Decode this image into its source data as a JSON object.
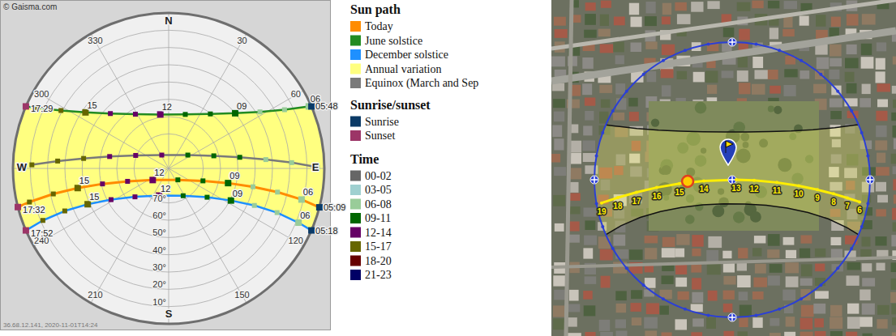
{
  "chart_data": [
    {
      "type": "sun_path",
      "title": "© Gaisma.com",
      "footer": "36.68.12.141, 2020-11-01T14:24",
      "xlim": [
        0,
        360
      ],
      "xticks": [
        {
          "value": 0,
          "label": "N"
        },
        30,
        60,
        {
          "value": 90,
          "label": "E"
        },
        120,
        150,
        {
          "value": 180,
          "label": "S"
        },
        210,
        240,
        {
          "value": 270,
          "label": "W"
        },
        300,
        330
      ],
      "ylim": [
        0,
        90
      ],
      "yticks": [
        {
          "value": 10,
          "label": "10°"
        },
        {
          "value": 20,
          "label": "20°"
        },
        {
          "value": 30,
          "label": "30°"
        },
        {
          "value": 40,
          "label": "40°"
        },
        {
          "value": 50,
          "label": "50°"
        },
        {
          "value": 60,
          "label": "60°"
        },
        {
          "value": 70,
          "label": "70°"
        }
      ],
      "grid": true,
      "marker": "square",
      "legend_title": "Sun path",
      "series": [
        {
          "name": "Today",
          "color": "#ff8c00",
          "type": "line",
          "hours": [
            6,
            7,
            8,
            9,
            10,
            11,
            12,
            13,
            14,
            15,
            16,
            17
          ],
          "x": [
            103.2,
            102.3,
            102.3,
            103.9,
            110.0,
            141.2,
            233.8,
            252.5,
            256.8,
            257.8,
            257.5,
            256.4
          ],
          "values": [
            11.1,
            25.6,
            40.1,
            54.6,
            68.9,
            81.5,
            78.6,
            65.1,
            50.7,
            36.2,
            21.7,
            7.2
          ],
          "hour_labels": [
            "06",
            null,
            null,
            "09",
            null,
            null,
            "12",
            null,
            null,
            "15",
            null,
            null
          ],
          "sunrise": {
            "label": "05:09",
            "x": 104.5,
            "value": 0
          },
          "sunset": {
            "label": "17:32",
            "x": 255.6,
            "value": 0
          }
        },
        {
          "name": "June solstice",
          "color": "#228b22",
          "type": "line",
          "hours": [
            6,
            7,
            8,
            9,
            10,
            11,
            12,
            13,
            14,
            15,
            16,
            17
          ],
          "x": [
            66.1,
            63.1,
            58.2,
            50.3,
            37.4,
            17.1,
            351.2,
            328.5,
            313.3,
            304.0,
            298.3,
            294.7
          ],
          "values": [
            1.4,
            14.9,
            27.9,
            40.0,
            50.3,
            57.3,
            58.4,
            53.2,
            43.7,
            32.0,
            19.3,
            6.0
          ],
          "hour_labels": [
            "06",
            null,
            null,
            "09",
            null,
            null,
            "12",
            null,
            null,
            "15",
            null,
            null
          ],
          "sunrise": {
            "label": "05:48",
            "x": 66.5,
            "value": 0
          },
          "sunset": {
            "label": "17:29",
            "x": 293.5,
            "value": 0
          }
        },
        {
          "name": "December solstice",
          "color": "#1e90ff",
          "type": "line",
          "hours": [
            6,
            7,
            8,
            9,
            10,
            11,
            12,
            13,
            14,
            15,
            16,
            17
          ],
          "x": [
            112.7,
            112.2,
            113.4,
            117.3,
            126.9,
            152.1,
            199.5,
            229.8,
            241.5,
            246.1,
            247.7,
            247.5
          ],
          "values": [
            8.6,
            22.3,
            36.0,
            49.5,
            62.2,
            72.1,
            73.3,
            64.5,
            52.1,
            38.8,
            25.1,
            11.3
          ],
          "hour_labels": [
            "06",
            null,
            null,
            "09",
            null,
            null,
            "12",
            null,
            null,
            "15",
            null,
            null
          ],
          "sunrise": {
            "label": "05:18",
            "x": 113.5,
            "value": 0
          },
          "sunset": {
            "label": "17:52",
            "x": 246.5,
            "value": 0
          }
        },
        {
          "name": "Annual variation",
          "color": "#ffff80",
          "type": "area"
        },
        {
          "name": "Equinox (March and Sep",
          "color": "#7a7a7a",
          "type": "line",
          "hours": [
            6,
            7,
            8,
            9,
            10,
            11,
            12,
            13,
            14,
            15,
            16,
            17
          ],
          "x": [
            89.5,
            87.3,
            84.8,
            81.1,
            74.4,
            55.1,
            332.7,
            291.5,
            281.4,
            276.7,
            273.8,
            271.5
          ],
          "values": [
            4.0,
            18.8,
            33.6,
            48.4,
            62.9,
            76.5,
            81.3,
            69.5,
            55.2,
            40.5,
            25.7,
            10.9
          ]
        }
      ],
      "sunrise_sunset": {
        "title": "Sunrise/sunset",
        "items": [
          {
            "name": "Sunrise",
            "color": "#0b3a66"
          },
          {
            "name": "Sunset",
            "color": "#9c3567"
          }
        ]
      },
      "time_legend": {
        "title": "Time",
        "items": [
          {
            "name": "00-02",
            "hours": [
              0,
              2
            ],
            "color": "#666666"
          },
          {
            "name": "03-05",
            "hours": [
              3,
              5
            ],
            "color": "#9fd0d0"
          },
          {
            "name": "06-08",
            "hours": [
              6,
              8
            ],
            "color": "#99cc99"
          },
          {
            "name": "09-11",
            "hours": [
              9,
              11
            ],
            "color": "#006600"
          },
          {
            "name": "12-14",
            "hours": [
              12,
              14
            ],
            "color": "#660066"
          },
          {
            "name": "15-17",
            "hours": [
              15,
              17
            ],
            "color": "#666600"
          },
          {
            "name": "18-20",
            "hours": [
              18,
              20
            ],
            "color": "#660000"
          },
          {
            "name": "21-23",
            "hours": [
              21,
              23
            ],
            "color": "#000066"
          }
        ]
      }
    },
    {
      "type": "sun_map",
      "xlim": [
        0,
        360
      ],
      "ylim": [
        0,
        90
      ],
      "marker": "circle",
      "color": "#ffee00",
      "hours": [
        6,
        7,
        8,
        9,
        10,
        11,
        12,
        13,
        14,
        15,
        16,
        17,
        18,
        19
      ],
      "x": [
        99.9,
        99.0,
        97.9,
        96.7,
        95.2,
        93.5,
        91.7,
        91.0,
        267.7,
        265.9,
        264.1,
        262.5,
        261.1,
        259.9
      ],
      "values": [
        5.6,
        13.9,
        23.2,
        34.0,
        46.4,
        60.8,
        75.7,
        87.4,
        71.5,
        55.5,
        40.5,
        27.0,
        14.4,
        3.4
      ],
      "sun_position": {
        "x": 267.9,
        "value": 60.9
      }
    }
  ]
}
